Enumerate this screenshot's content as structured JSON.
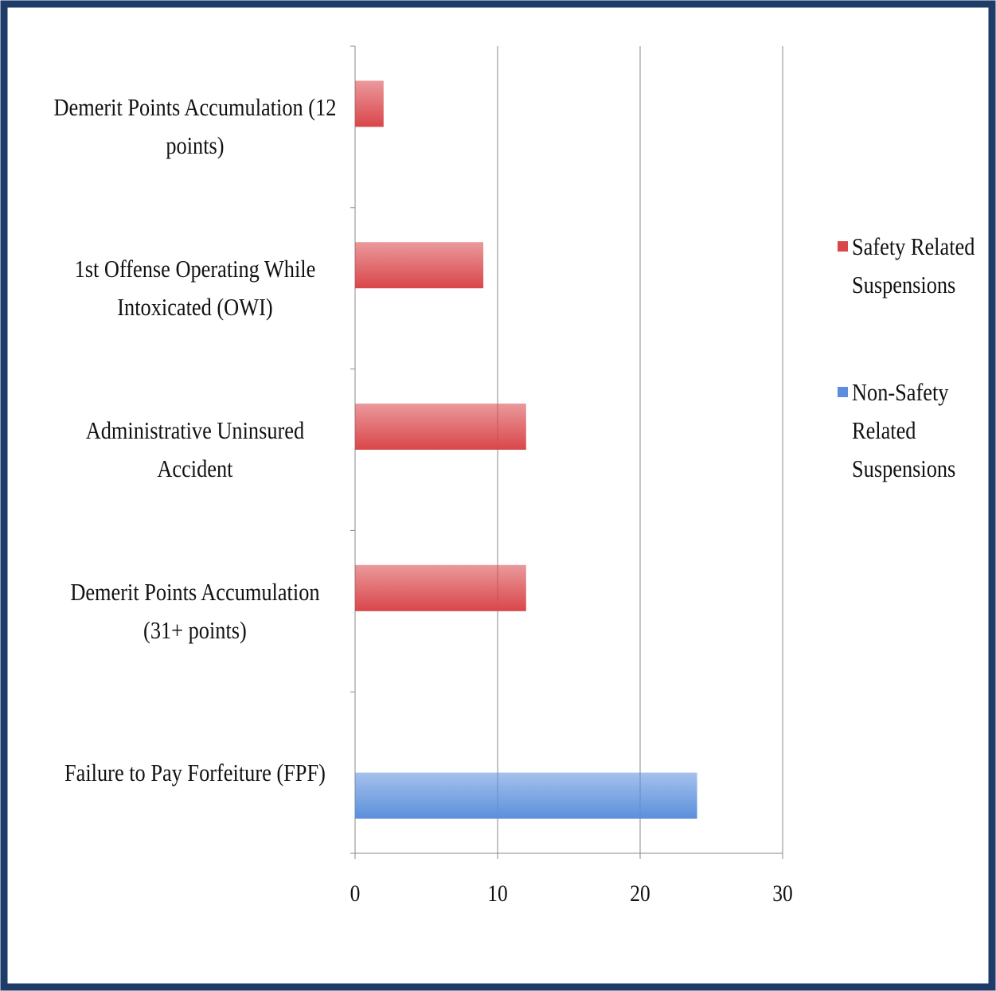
{
  "chart_data": {
    "type": "bar",
    "orientation": "horizontal",
    "categories": [
      "Demerit Points Accumulation (12 points)",
      "1st Offense Operating While Intoxicated (OWI)",
      "Administrative Uninsured Accident",
      "Demerit Points Accumulation (31+ points)",
      "Failure to Pay Forfeiture (FPF)"
    ],
    "series": [
      {
        "name": "Safety Related Suspensions",
        "color": "#d9464a",
        "values": [
          2,
          9,
          12,
          12,
          null
        ]
      },
      {
        "name": "Non-Safety Related Suspensions",
        "color": "#5b8fdc",
        "values": [
          null,
          null,
          null,
          null,
          24
        ]
      }
    ],
    "xlim": [
      0,
      30
    ],
    "xticks": [
      0,
      10,
      20,
      30
    ],
    "grid": true,
    "legend": "right"
  }
}
